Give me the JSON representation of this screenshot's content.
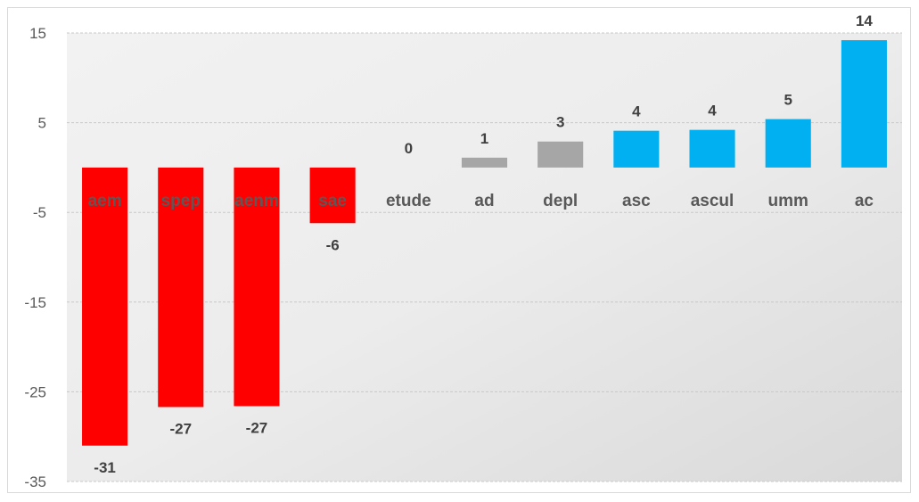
{
  "chart_data": {
    "type": "bar",
    "title": "",
    "xlabel": "",
    "ylabel": "",
    "categories": [
      "aem",
      "spep",
      "aenm",
      "sae",
      "etude",
      "ad",
      "depl",
      "asc",
      "ascul",
      "umm",
      "ac"
    ],
    "values": [
      -31,
      -26.7,
      -26.6,
      -6.2,
      0,
      1.1,
      2.9,
      4.1,
      4.2,
      5.4,
      14.2
    ],
    "data_labels": [
      "-31",
      "-27",
      "-27",
      "-6",
      "0",
      "1",
      "3",
      "4",
      "4",
      "5",
      "14"
    ],
    "bar_colors": [
      "#ff0000",
      "#ff0000",
      "#ff0000",
      "#ff0000",
      "#a6a6a6",
      "#a6a6a6",
      "#a6a6a6",
      "#00b0f0",
      "#00b0f0",
      "#00b0f0",
      "#00b0f0"
    ],
    "yticks": [
      15,
      5,
      -5,
      -15,
      -25,
      -35
    ],
    "ylim": [
      -35,
      15
    ],
    "grid": true,
    "legend": "none",
    "background": "gradient-light-gray"
  }
}
